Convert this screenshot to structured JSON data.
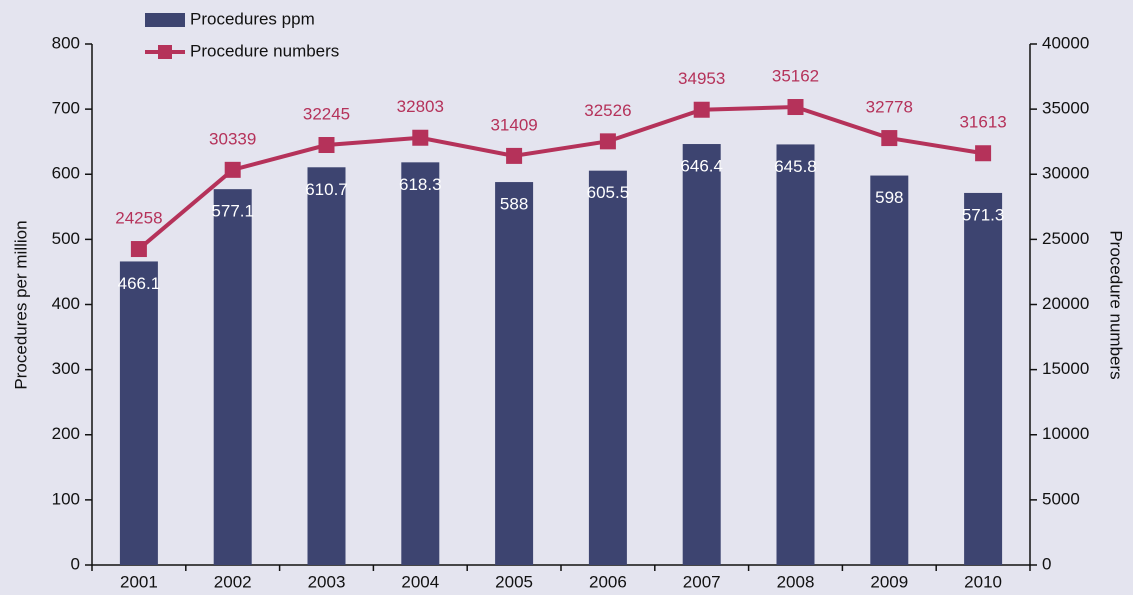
{
  "chart_data": {
    "type": "bar_line",
    "categories": [
      "2001",
      "2002",
      "2003",
      "2004",
      "2005",
      "2006",
      "2007",
      "2008",
      "2009",
      "2010"
    ],
    "series": [
      {
        "name": "Procedures ppm",
        "type": "bar",
        "color": "#3d4470",
        "values": [
          466.1,
          577.1,
          610.7,
          618.3,
          588,
          605.5,
          646.4,
          645.8,
          598,
          571.3
        ]
      },
      {
        "name": "Procedure numbers",
        "type": "line",
        "axis": "y2",
        "color": "#b5325a",
        "values": [
          24258,
          30339,
          32245,
          32803,
          31409,
          32526,
          34953,
          35162,
          32778,
          31613
        ]
      }
    ],
    "y_label": "Procedures per million",
    "y2_label": "Procedure numbers",
    "ylim": [
      0,
      800
    ],
    "yticks": [
      0,
      100,
      200,
      300,
      400,
      500,
      600,
      700,
      800
    ],
    "y2lim": [
      0,
      40000
    ],
    "y2ticks": [
      0,
      5000,
      10000,
      15000,
      20000,
      25000,
      30000,
      35000,
      40000
    ]
  }
}
